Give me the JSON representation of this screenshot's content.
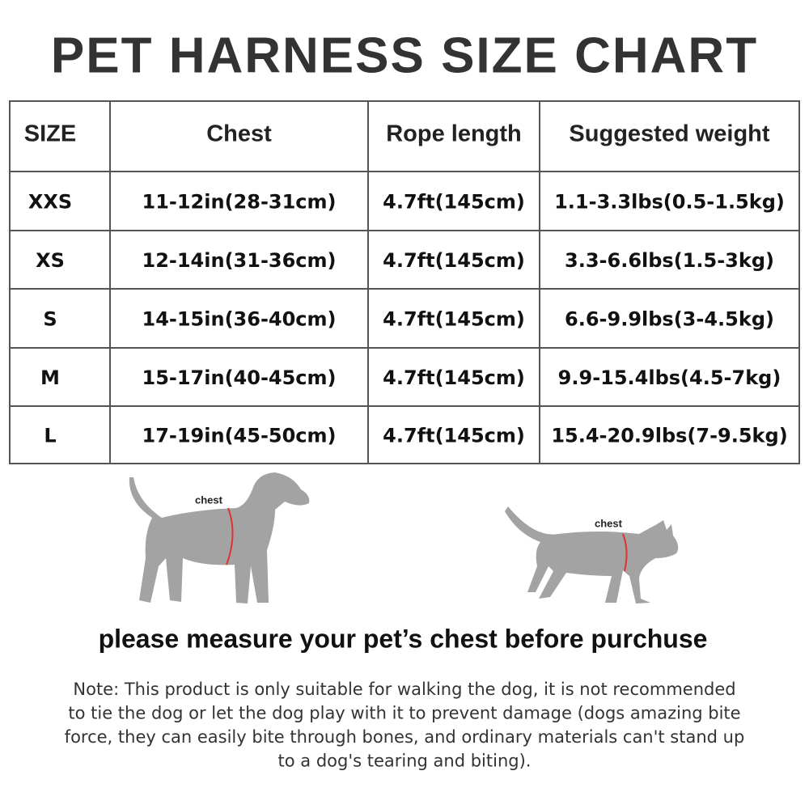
{
  "header": {
    "title": "PET HARNESS SIZE CHART"
  },
  "table": {
    "columns": [
      "SIZE",
      "Chest",
      "Rope length",
      "Suggested weight"
    ],
    "rows": [
      [
        "XXS",
        "11-12in(28-31cm)",
        "4.7ft(145cm)",
        "1.1-3.3lbs(0.5-1.5kg)"
      ],
      [
        "XS",
        "12-14in(31-36cm)",
        "4.7ft(145cm)",
        "3.3-6.6lbs(1.5-3kg)"
      ],
      [
        "S",
        "14-15in(36-40cm)",
        "4.7ft(145cm)",
        "6.6-9.9lbs(3-4.5kg)"
      ],
      [
        "M",
        "15-17in(40-45cm)",
        "4.7ft(145cm)",
        "9.9-15.4lbs(4.5-7kg)"
      ],
      [
        "L",
        "17-19in(45-50cm)",
        "4.7ft(145cm)",
        "15.4-20.9lbs(7-9.5kg)"
      ]
    ]
  },
  "illustrations": {
    "dog_label": "chest",
    "cat_label": "chest"
  },
  "tagline": "please measure your pet’s chest before purchuse",
  "note": [
    "Note: This product is only suitable for walking the dog, it is not recommended",
    "to tie the dog or let the dog play with it to prevent damage (dogs amazing bite",
    "force, they can easily bite through bones, and ordinary materials can't stand up",
    "to a dog's tearing and biting)."
  ]
}
